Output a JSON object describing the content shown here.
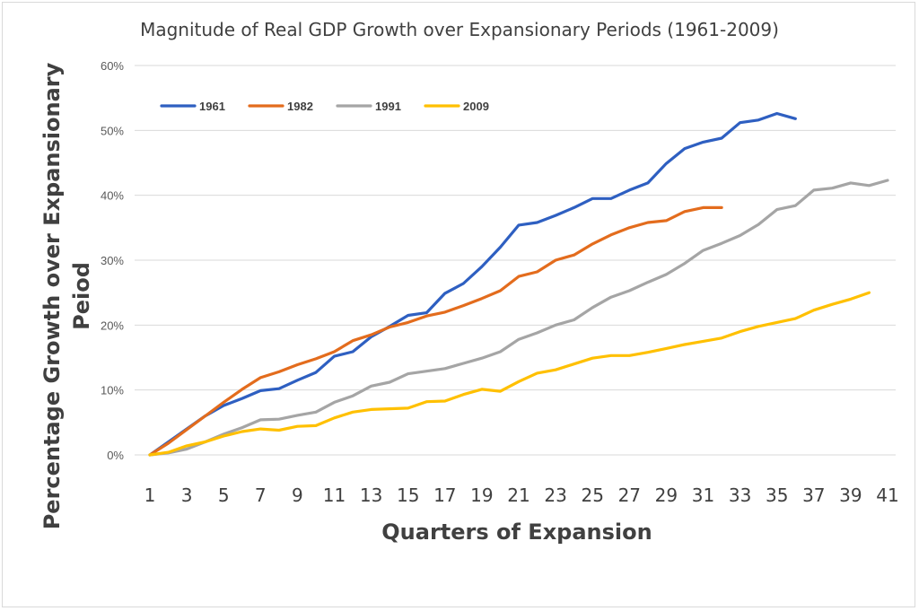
{
  "chart_data": {
    "type": "line",
    "title": "Magnitude of Real GDP Growth over Expansionary Periods (1961-2009)",
    "xlabel": "Quarters of Expansion",
    "ylabel_lines": [
      "Percentage Growth over Expansionary",
      "Peiod"
    ],
    "ylim": [
      0,
      60
    ],
    "yticks": [
      0,
      10,
      20,
      30,
      40,
      50,
      60
    ],
    "ytick_labels": [
      "0%",
      "10%",
      "20%",
      "30%",
      "40%",
      "50%",
      "60%"
    ],
    "xlim": [
      1,
      41
    ],
    "xtick_labels": [
      "1",
      "3",
      "5",
      "7",
      "9",
      "11",
      "13",
      "15",
      "17",
      "19",
      "21",
      "23",
      "25",
      "27",
      "29",
      "31",
      "33",
      "35",
      "37",
      "39",
      "41"
    ],
    "grid": true,
    "legend_position": "top-left",
    "series": [
      {
        "name": "1961",
        "color": "#2e5fc1",
        "x": [
          1,
          2,
          3,
          4,
          5,
          6,
          7,
          8,
          9,
          10,
          11,
          12,
          13,
          14,
          15,
          16,
          17,
          18,
          19,
          20,
          21,
          22,
          23,
          24,
          25,
          26,
          27,
          28,
          29,
          30,
          31,
          32,
          33,
          34,
          35,
          36
        ],
        "values": [
          0,
          2,
          4,
          6,
          7.6,
          8.7,
          9.9,
          10.2,
          11.5,
          12.7,
          15.2,
          15.9,
          18.2,
          19.8,
          21.5,
          21.9,
          24.9,
          26.4,
          29.0,
          32.0,
          35.4,
          35.8,
          36.9,
          38.1,
          39.5,
          39.5,
          40.8,
          41.9,
          44.9,
          47.2,
          48.2,
          48.8,
          51.2,
          51.6,
          52.6,
          51.8
        ]
      },
      {
        "name": "1982",
        "color": "#e36c1d",
        "x": [
          1,
          2,
          3,
          4,
          5,
          6,
          7,
          8,
          9,
          10,
          11,
          12,
          13,
          14,
          15,
          16,
          17,
          18,
          19,
          20,
          21,
          22,
          23,
          24,
          25,
          26,
          27,
          28,
          29,
          30,
          31,
          32
        ],
        "values": [
          0,
          1.8,
          3.9,
          6.0,
          8.1,
          10.1,
          11.9,
          12.8,
          13.9,
          14.8,
          15.9,
          17.6,
          18.5,
          19.7,
          20.4,
          21.4,
          22.0,
          23.0,
          24.1,
          25.3,
          27.5,
          28.2,
          30.0,
          30.8,
          32.5,
          33.9,
          35.0,
          35.8,
          36.1,
          37.5,
          38.1,
          38.1
        ]
      },
      {
        "name": "1991",
        "color": "#a5a5a5",
        "x": [
          1,
          2,
          3,
          4,
          5,
          6,
          7,
          8,
          9,
          10,
          11,
          12,
          13,
          14,
          15,
          16,
          17,
          18,
          19,
          20,
          21,
          22,
          23,
          24,
          25,
          26,
          27,
          28,
          29,
          30,
          31,
          32,
          33,
          34,
          35,
          36,
          37,
          38,
          39,
          40,
          41
        ],
        "values": [
          0,
          0.3,
          0.9,
          2.0,
          3.2,
          4.2,
          5.4,
          5.5,
          6.1,
          6.6,
          8.1,
          9.1,
          10.6,
          11.2,
          12.5,
          12.9,
          13.3,
          14.1,
          14.9,
          15.9,
          17.8,
          18.8,
          20.0,
          20.8,
          22.7,
          24.3,
          25.3,
          26.6,
          27.8,
          29.5,
          31.5,
          32.6,
          33.8,
          35.5,
          37.8,
          38.4,
          40.8,
          41.1,
          41.9,
          41.5,
          42.3
        ]
      },
      {
        "name": "2009",
        "color": "#ffc000",
        "x": [
          1,
          2,
          3,
          4,
          5,
          6,
          7,
          8,
          9,
          10,
          11,
          12,
          13,
          14,
          15,
          16,
          17,
          18,
          19,
          20,
          21,
          22,
          23,
          24,
          25,
          26,
          27,
          28,
          29,
          30,
          31,
          32,
          33,
          34,
          35,
          36,
          37,
          38,
          39,
          40
        ],
        "values": [
          0,
          0.4,
          1.4,
          2.0,
          2.9,
          3.6,
          4.0,
          3.8,
          4.4,
          4.5,
          5.7,
          6.6,
          7.0,
          7.1,
          7.2,
          8.2,
          8.3,
          9.3,
          10.1,
          9.8,
          11.3,
          12.6,
          13.1,
          14.0,
          14.9,
          15.3,
          15.3,
          15.8,
          16.4,
          17.0,
          17.5,
          18.0,
          19.0,
          19.8,
          20.4,
          21.0,
          22.3,
          23.2,
          24.0,
          25.0
        ]
      }
    ]
  }
}
